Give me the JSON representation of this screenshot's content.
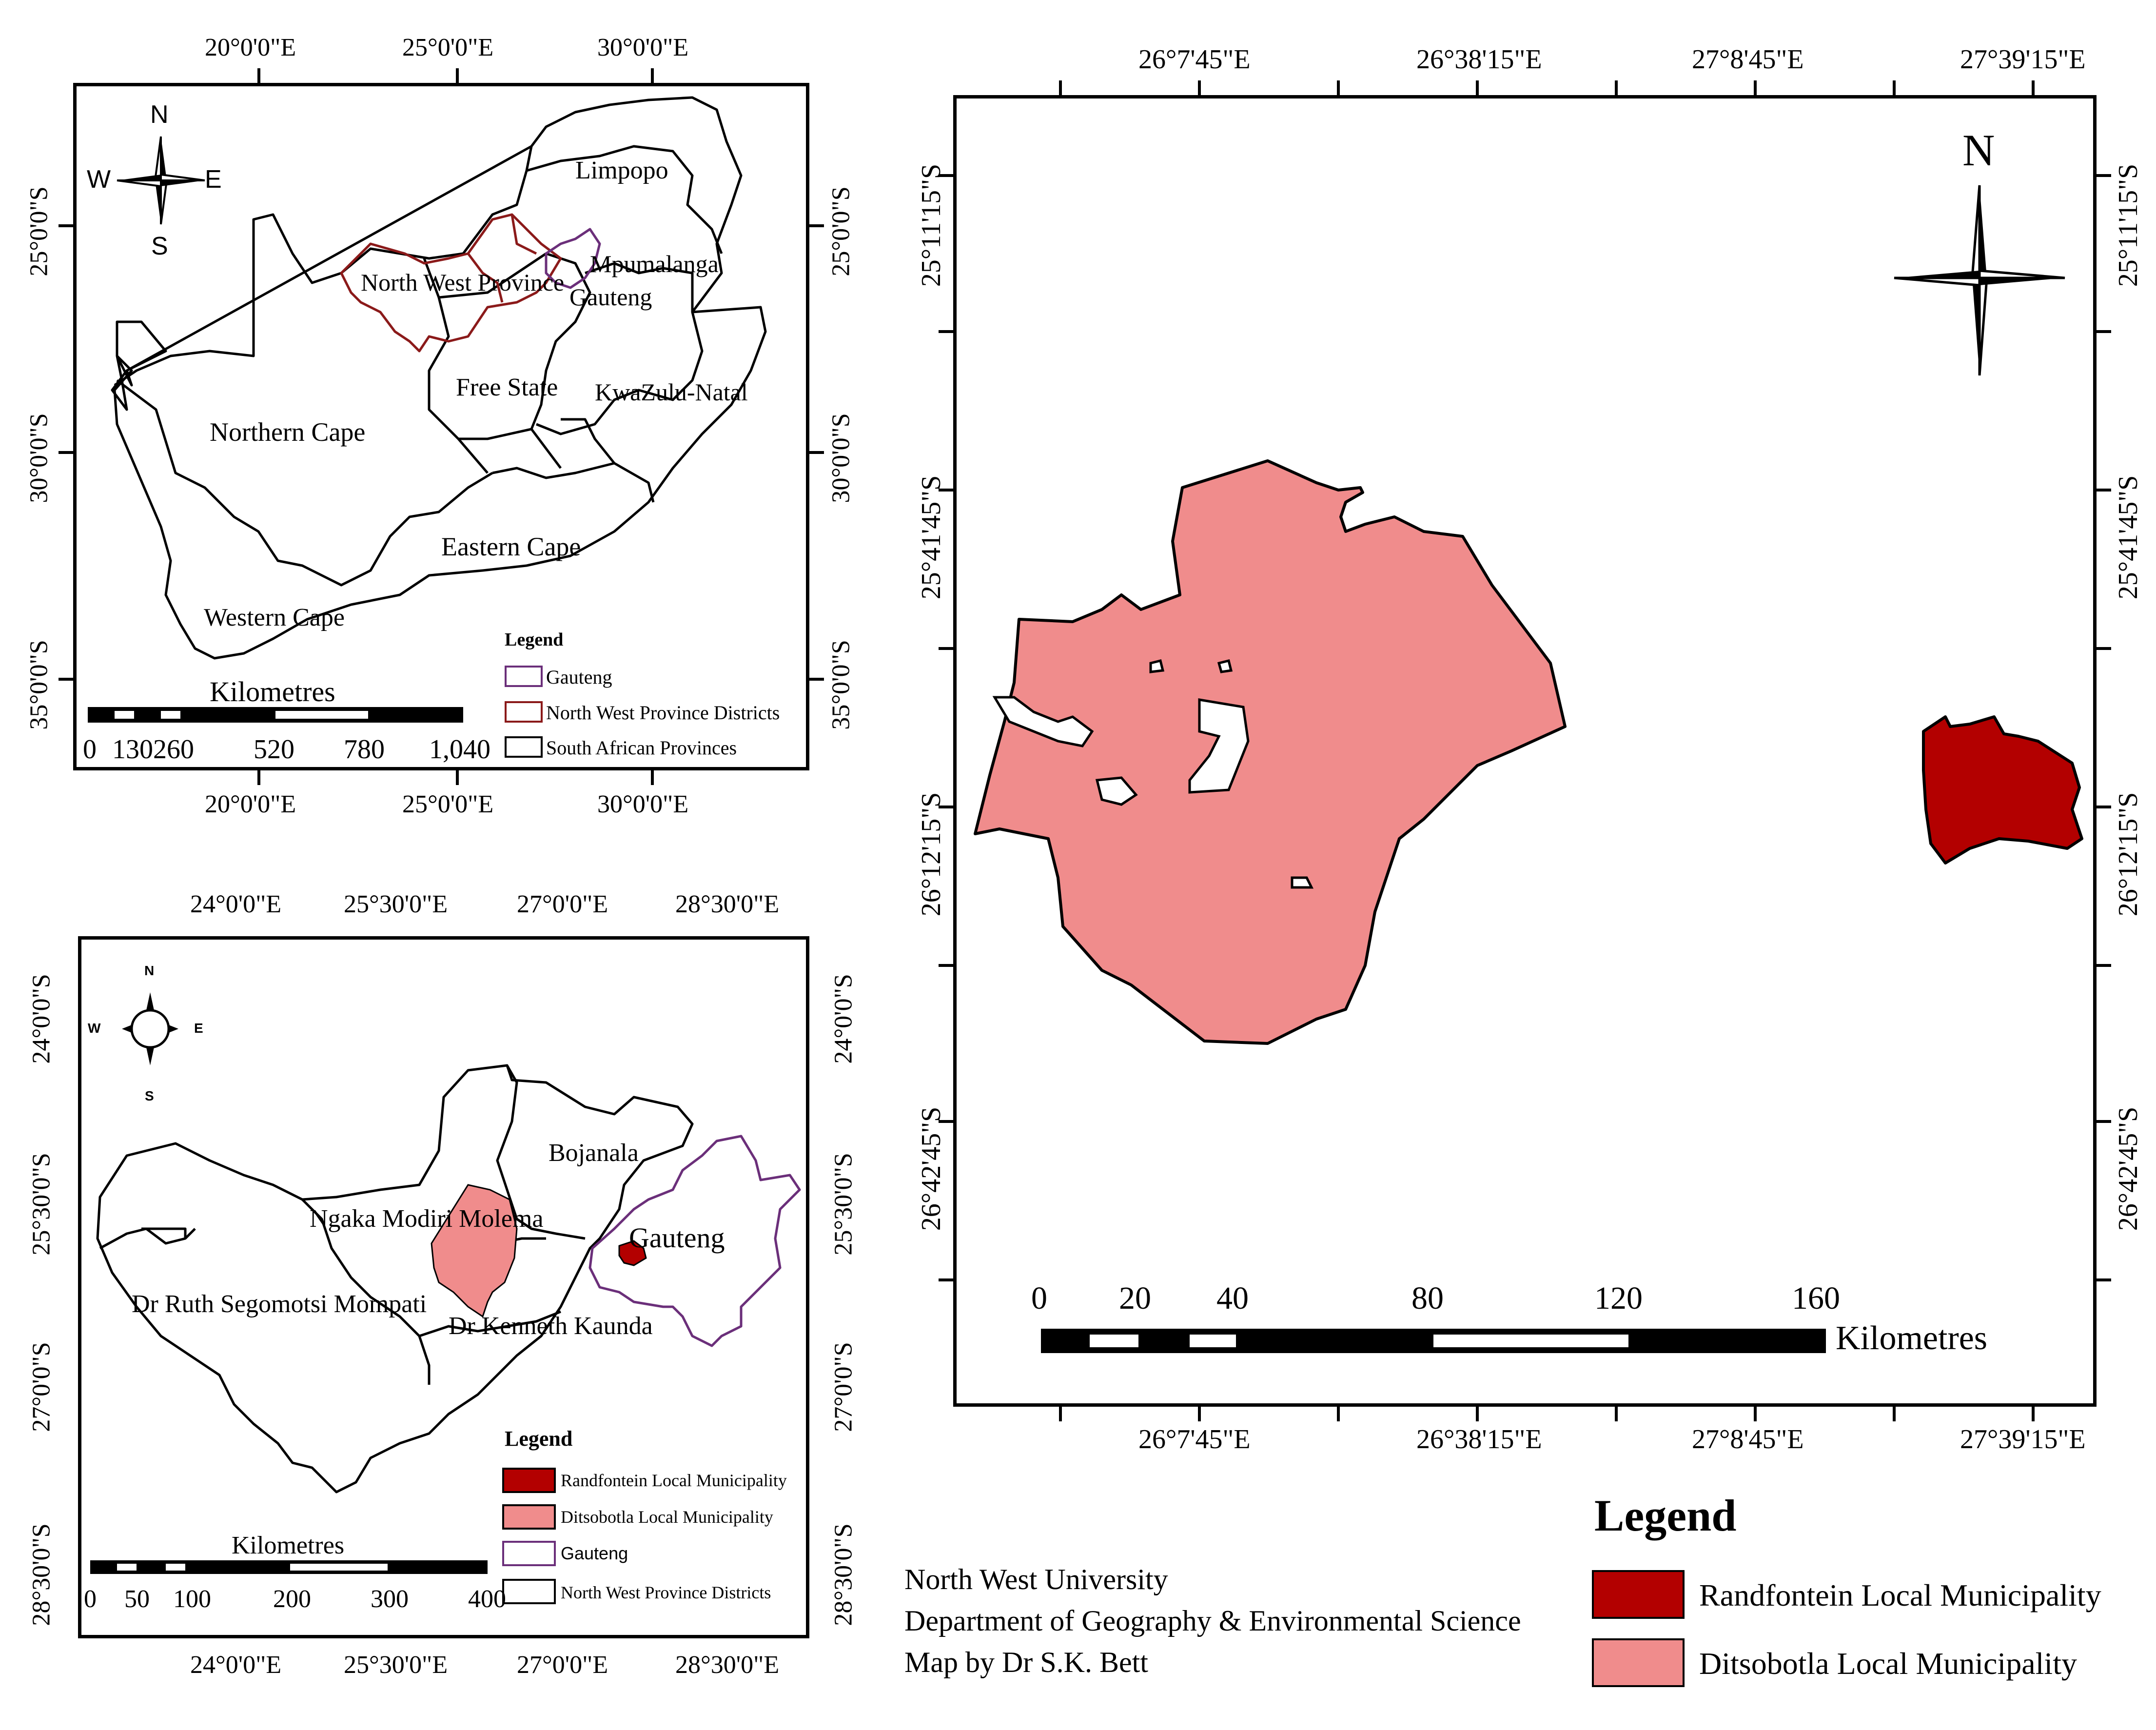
{
  "inset_sa": {
    "lon_ticks": [
      "20°0'0\"E",
      "25°0'0\"E",
      "30°0'0\"E"
    ],
    "lat_ticks": [
      "25°0'0\"S",
      "30°0'0\"S",
      "35°0'0\"S"
    ],
    "compass": {
      "n": "N",
      "s": "S",
      "e": "E",
      "w": "W"
    },
    "provinces": {
      "limpopo": "Limpopo",
      "north_west": "North West Province",
      "mpumalanga": "Mpumalanga",
      "gauteng": "Gauteng",
      "free_state": "Free State",
      "kzn": "KwaZulu-Natal",
      "northern_cape": "Northern Cape",
      "eastern_cape": "Eastern Cape",
      "western_cape": "Western Cape"
    },
    "scale": {
      "title": "Kilometres",
      "labels": [
        "0",
        "130260",
        "520",
        "780",
        "1,040"
      ]
    },
    "legend": {
      "title": "Legend",
      "items": [
        "Gauteng",
        "North West Province Districts",
        "South African Provinces"
      ],
      "colors": [
        "#6b2f7a",
        "#8b1a1a",
        "#000000"
      ]
    }
  },
  "inset_nw": {
    "lon_ticks": [
      "24°0'0\"E",
      "25°30'0\"E",
      "27°0'0\"E",
      "28°30'0\"E"
    ],
    "lat_ticks": [
      "24°0'0\"S",
      "25°30'0\"S",
      "27°0'0\"S",
      "28°30'0\"S"
    ],
    "compass": {
      "n": "N",
      "s": "S",
      "e": "E",
      "w": "W"
    },
    "districts": {
      "bojanala": "Bojanala",
      "ngaka": "Ngaka Modiri Molema",
      "gauteng": "Gauteng",
      "ruth": "Dr Ruth Segomotsi Mompati",
      "kenneth": "Dr Kenneth Kaunda"
    },
    "scale": {
      "title": "Kilometres",
      "labels": [
        "0",
        "50",
        "100",
        "200",
        "300",
        "400"
      ]
    },
    "legend": {
      "title": "Legend",
      "items": [
        "Randfontein Local Municipality",
        "Ditsobotla Local Municipality",
        "Gauteng",
        "North West Province Districts"
      ],
      "colors": [
        "#b30000",
        "#f08c8c",
        "#6b2f7a",
        "#000000"
      ]
    }
  },
  "main_map": {
    "lon_ticks": [
      "26°7'45\"E",
      "26°38'15\"E",
      "27°8'45\"E",
      "27°39'15\"E"
    ],
    "lat_ticks": [
      "25°11'15\"S",
      "25°41'45\"S",
      "26°12'15\"S",
      "26°42'45\"S"
    ],
    "north_label": "N",
    "scale": {
      "title": "Kilometres",
      "labels": [
        "0",
        "20",
        "40",
        "80",
        "120",
        "160"
      ]
    },
    "colors": {
      "ditsobotla": "#f08c8c",
      "randfontein": "#b30000"
    }
  },
  "credits": {
    "line1": "North West University",
    "line2": "Department of Geography & Environmental Science",
    "line3": "Map by Dr S.K. Bett"
  },
  "main_legend": {
    "title": "Legend",
    "items": [
      "Randfontein Local Municipality",
      "Ditsobotla Local Municipality"
    ],
    "colors": [
      "#b30000",
      "#f08c8c"
    ]
  }
}
